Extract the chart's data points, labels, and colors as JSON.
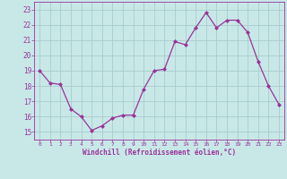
{
  "x": [
    0,
    1,
    2,
    3,
    4,
    5,
    6,
    7,
    8,
    9,
    10,
    11,
    12,
    13,
    14,
    15,
    16,
    17,
    18,
    19,
    20,
    21,
    22,
    23
  ],
  "y": [
    19.0,
    18.2,
    18.1,
    16.5,
    16.0,
    15.1,
    15.4,
    15.9,
    16.1,
    16.1,
    17.8,
    19.0,
    19.1,
    20.9,
    20.7,
    21.8,
    22.8,
    21.8,
    22.3,
    22.3,
    21.5,
    19.6,
    18.0,
    16.8
  ],
  "line_color": "#993399",
  "marker_color": "#993399",
  "bg_color": "#c8e8e8",
  "grid_color": "#aacccc",
  "xlabel": "Windchill (Refroidissement éolien,°C)",
  "xlabel_color": "#993399",
  "tick_color": "#993399",
  "ylim": [
    14.5,
    23.5
  ],
  "xlim": [
    -0.5,
    23.5
  ],
  "yticks": [
    15,
    16,
    17,
    18,
    19,
    20,
    21,
    22,
    23
  ],
  "xticks": [
    0,
    1,
    2,
    3,
    4,
    5,
    6,
    7,
    8,
    9,
    10,
    11,
    12,
    13,
    14,
    15,
    16,
    17,
    18,
    19,
    20,
    21,
    22,
    23
  ]
}
